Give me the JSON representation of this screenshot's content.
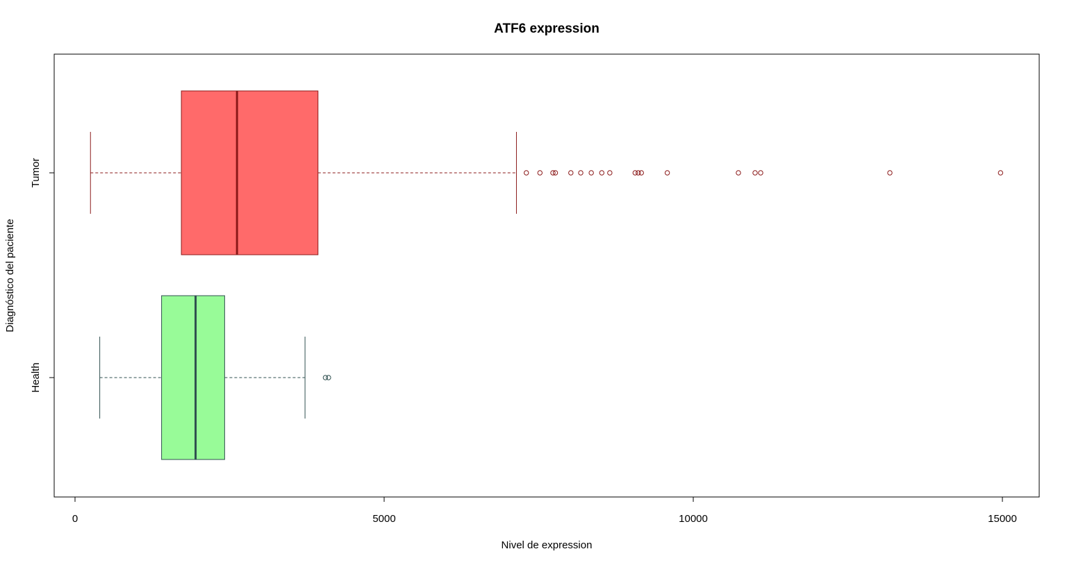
{
  "chart_data": {
    "type": "boxplot",
    "orientation": "horizontal",
    "title": "ATF6 expression",
    "xlabel": "Nivel de expression",
    "ylabel": "Diagnóstico del paciente",
    "xlim": [
      -350,
      15500
    ],
    "xticks": [
      0,
      5000,
      10000,
      15000
    ],
    "xtick_labels": [
      "0",
      "5000",
      "10000",
      "15000"
    ],
    "grid": false,
    "legend": "none",
    "groups": [
      {
        "name": "Health",
        "fill": "#98fb98",
        "stroke": "#2f4f4f",
        "whisker_low": 400,
        "q1": 1400,
        "median": 1950,
        "q3": 2420,
        "whisker_high": 3720,
        "outliers": [
          4050,
          4100
        ]
      },
      {
        "name": "Tumor",
        "fill": "#ff6a6a",
        "stroke": "#8b1a1a",
        "whisker_low": 250,
        "q1": 1720,
        "median": 2620,
        "q3": 3930,
        "whisker_high": 7140,
        "outliers": [
          7300,
          7520,
          7730,
          7770,
          8020,
          8180,
          8350,
          8520,
          8650,
          9060,
          9110,
          9160,
          9580,
          10730,
          11000,
          11090,
          13180,
          14970
        ]
      }
    ]
  }
}
